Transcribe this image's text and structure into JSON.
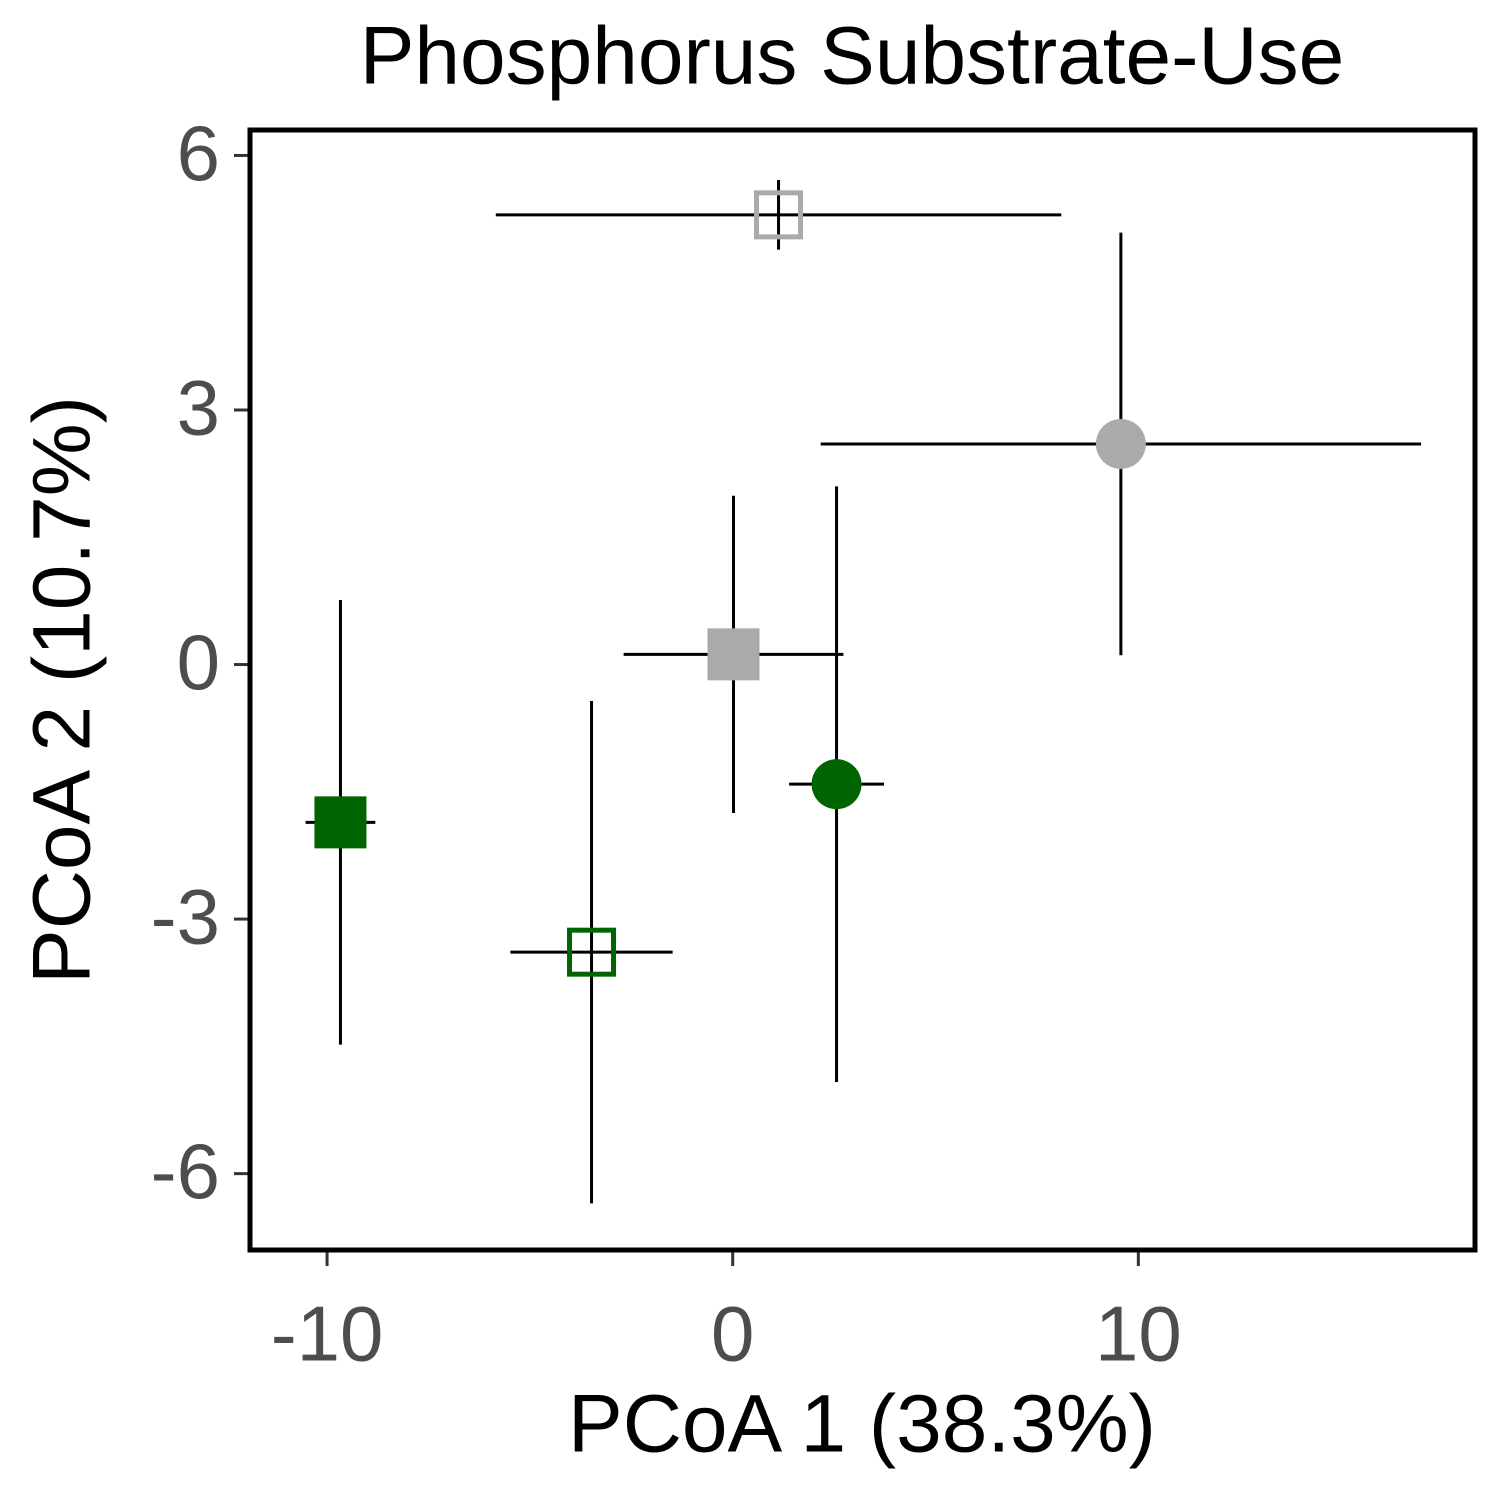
{
  "chart_data": {
    "type": "scatter",
    "title": "Phosphorus Substrate-Use",
    "x_label": "PCoA 1 (38.3%)",
    "y_label": "PCoA 2 (10.7%)",
    "xlim": [
      -11.9,
      18.3
    ],
    "ylim": [
      -6.9,
      6.3
    ],
    "xticks": [
      -10,
      0,
      10
    ],
    "yticks": [
      -6,
      -3,
      0,
      3,
      6
    ],
    "points": [
      {
        "x": 1.13,
        "y": 5.3,
        "xerr": 6.97,
        "yerr": 0.41,
        "color": "#aaaaaa",
        "marker": "square",
        "filled": false
      },
      {
        "x": 9.57,
        "y": 2.6,
        "xerr": 7.4,
        "yerr": 2.49,
        "color": "#aaaaaa",
        "marker": "circle",
        "filled": true
      },
      {
        "x": 0.02,
        "y": 0.12,
        "xerr": 2.71,
        "yerr": 1.87,
        "color": "#aaaaaa",
        "marker": "square",
        "filled": true
      },
      {
        "x": 2.56,
        "y": -1.41,
        "xerr": 1.17,
        "yerr": 3.51,
        "color": "#006400",
        "marker": "circle",
        "filled": true
      },
      {
        "x": -9.67,
        "y": -1.86,
        "xerr": 0.86,
        "yerr": 2.62,
        "color": "#006400",
        "marker": "square",
        "filled": true
      },
      {
        "x": -3.48,
        "y": -3.39,
        "xerr": 2.0,
        "yerr": 2.96,
        "color": "#006400",
        "marker": "square",
        "filled": false
      }
    ]
  }
}
